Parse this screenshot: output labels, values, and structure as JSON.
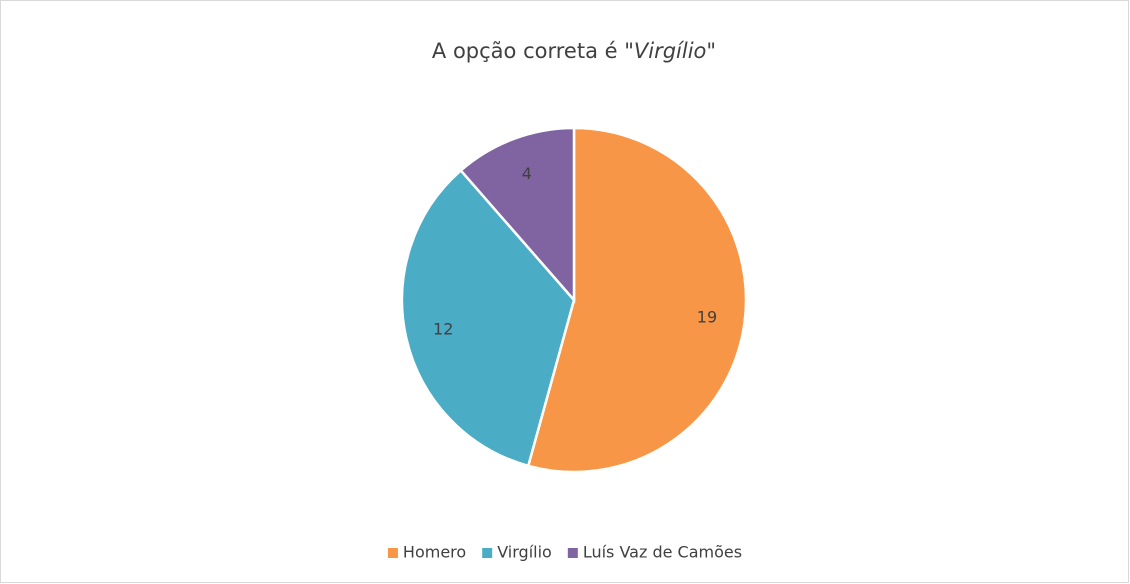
{
  "chart_data": {
    "type": "pie",
    "title": [
      "A opção correta é \"",
      "Virgílio",
      "\""
    ],
    "title_italic": [
      false,
      true,
      false
    ],
    "categories": [
      "Homero",
      "Virgílio",
      "Luís Vaz de Camões"
    ],
    "values": [
      19,
      12,
      4
    ],
    "colors": [
      "#f79646",
      "#4bacc6",
      "#8064a2"
    ],
    "legend": "bottom"
  }
}
